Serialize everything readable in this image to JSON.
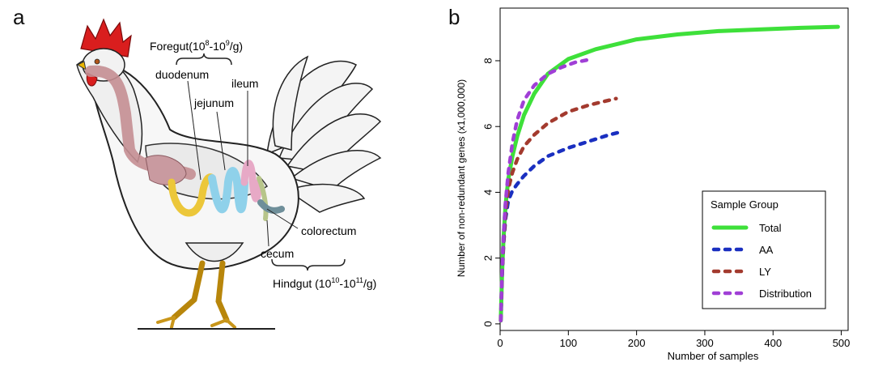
{
  "panel_a": {
    "letter": "a",
    "foregut_label": "Foregut(10",
    "foregut_exp1": "8",
    "foregut_mid": "-10",
    "foregut_exp2": "9",
    "foregut_unit": "/g)",
    "hindgut_label": "Hindgut (10",
    "hindgut_exp1": "10",
    "hindgut_mid": "-10",
    "hindgut_exp2": "11",
    "hindgut_unit": "/g)",
    "organs": {
      "duodenum": "duodenum",
      "jejunum": "jejunum",
      "ileum": "ileum",
      "colorectum": "colorectum",
      "cecum": "cecum"
    }
  },
  "panel_b": {
    "letter": "b"
  },
  "chart_data": {
    "type": "line",
    "title": "",
    "xlabel": "Number of samples",
    "ylabel": "Number of non-redundant genes (x1,000,000)",
    "xlim": [
      0,
      510
    ],
    "ylim": [
      -0.2,
      9.6
    ],
    "xticks": [
      0,
      100,
      200,
      300,
      400,
      500
    ],
    "yticks": [
      0,
      2,
      4,
      6,
      8
    ],
    "legend": {
      "title": "Sample Group",
      "position": "bottom-right"
    },
    "series": [
      {
        "name": "Total",
        "color": "#3ee03a",
        "style": "solid",
        "x": [
          1,
          3,
          5,
          8,
          12,
          18,
          25,
          35,
          50,
          70,
          100,
          140,
          200,
          260,
          320,
          380,
          440,
          495
        ],
        "y": [
          0.1,
          1.6,
          2.6,
          3.6,
          4.4,
          5.1,
          5.7,
          6.35,
          7.0,
          7.6,
          8.05,
          8.35,
          8.65,
          8.8,
          8.9,
          8.95,
          9.0,
          9.03
        ]
      },
      {
        "name": "AA",
        "color": "#1a2fc0",
        "style": "dashed",
        "x": [
          1,
          3,
          5,
          8,
          12,
          18,
          25,
          35,
          50,
          70,
          100,
          130,
          160,
          180
        ],
        "y": [
          0.1,
          1.5,
          2.4,
          3.2,
          3.75,
          4.05,
          4.25,
          4.5,
          4.8,
          5.1,
          5.35,
          5.55,
          5.75,
          5.85
        ]
      },
      {
        "name": "LY",
        "color": "#a33a2e",
        "style": "dashed",
        "x": [
          1,
          3,
          5,
          8,
          12,
          18,
          25,
          35,
          50,
          70,
          100,
          130,
          160,
          170
        ],
        "y": [
          0.1,
          1.6,
          2.5,
          3.4,
          4.1,
          4.6,
          5.0,
          5.4,
          5.75,
          6.1,
          6.45,
          6.65,
          6.8,
          6.85
        ]
      },
      {
        "name": "Distribution",
        "color": "#a03fd6",
        "style": "dashed",
        "x": [
          1,
          3,
          5,
          8,
          12,
          18,
          25,
          35,
          50,
          70,
          90,
          110,
          135
        ],
        "y": [
          0.1,
          1.7,
          2.7,
          3.7,
          4.6,
          5.5,
          6.2,
          6.8,
          7.25,
          7.6,
          7.8,
          7.95,
          8.05
        ]
      }
    ]
  }
}
